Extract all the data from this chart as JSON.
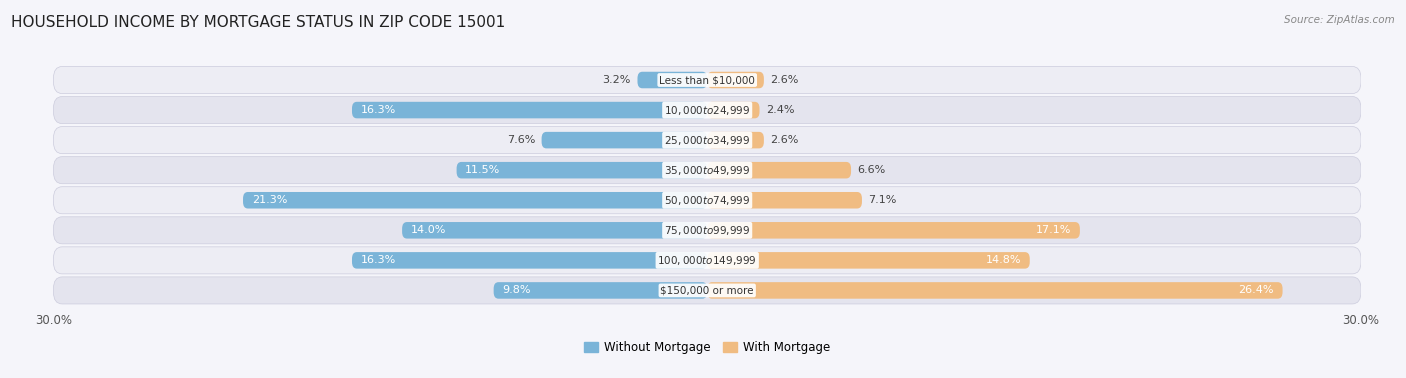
{
  "title": "HOUSEHOLD INCOME BY MORTGAGE STATUS IN ZIP CODE 15001",
  "source": "Source: ZipAtlas.com",
  "categories": [
    "Less than $10,000",
    "$10,000 to $24,999",
    "$25,000 to $34,999",
    "$35,000 to $49,999",
    "$50,000 to $74,999",
    "$75,000 to $99,999",
    "$100,000 to $149,999",
    "$150,000 or more"
  ],
  "without_mortgage": [
    3.2,
    16.3,
    7.6,
    11.5,
    21.3,
    14.0,
    16.3,
    9.8
  ],
  "with_mortgage": [
    2.6,
    2.4,
    2.6,
    6.6,
    7.1,
    17.1,
    14.8,
    26.4
  ],
  "color_without": "#7ab4d8",
  "color_with": "#f0bc82",
  "color_without_light": "#a8cce8",
  "color_with_light": "#f5d4a8",
  "row_colors": [
    "#ededf4",
    "#e4e4ee"
  ],
  "title_fontsize": 11,
  "label_fontsize": 8,
  "cat_fontsize": 7.5,
  "axis_max": 30.0,
  "legend_label_without": "Without Mortgage",
  "legend_label_with": "With Mortgage",
  "background_color": "#f5f5fa",
  "inside_label_threshold": 8.0
}
